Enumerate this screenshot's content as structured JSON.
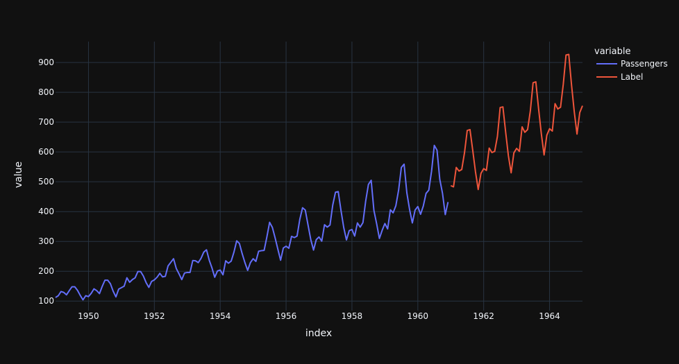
{
  "chart_data": {
    "type": "line",
    "xlabel": "index",
    "ylabel": "value",
    "xlim": [
      1949.0,
      1965.0
    ],
    "ylim": [
      68,
      970
    ],
    "x_ticks": [
      1950,
      1952,
      1954,
      1956,
      1958,
      1960,
      1962,
      1964
    ],
    "y_ticks": [
      100,
      200,
      300,
      400,
      500,
      600,
      700,
      800,
      900
    ],
    "grid": true,
    "legend": {
      "title": "variable",
      "position": "top-right"
    },
    "series": [
      {
        "name": "Passengers",
        "color": "#636efa",
        "x_start": "1949-01",
        "x_step_months": 1,
        "values": [
          112,
          118,
          132,
          129,
          121,
          135,
          148,
          148,
          136,
          119,
          104,
          118,
          115,
          126,
          141,
          135,
          125,
          149,
          170,
          170,
          158,
          133,
          114,
          140,
          145,
          150,
          178,
          163,
          172,
          178,
          199,
          199,
          184,
          162,
          146,
          166,
          171,
          180,
          193,
          181,
          183,
          218,
          230,
          242,
          209,
          191,
          172,
          194,
          196,
          196,
          236,
          235,
          229,
          243,
          264,
          272,
          237,
          211,
          180,
          201,
          204,
          188,
          235,
          227,
          234,
          264,
          302,
          293,
          259,
          229,
          203,
          229,
          242,
          233,
          267,
          269,
          270,
          315,
          364,
          347,
          312,
          274,
          237,
          278,
          284,
          277,
          317,
          313,
          318,
          374,
          413,
          405,
          355,
          306,
          271,
          306,
          315,
          301,
          356,
          348,
          355,
          422,
          465,
          467,
          404,
          347,
          305,
          336,
          340,
          318,
          362,
          348,
          363,
          435,
          491,
          505,
          404,
          359,
          310,
          337,
          360,
          342,
          406,
          396,
          420,
          472,
          548,
          559,
          463,
          407,
          362,
          405,
          417,
          391,
          419,
          461,
          472,
          535,
          622,
          606,
          508,
          461,
          390,
          432
        ]
      },
      {
        "name": "Label",
        "color": "#ef553b",
        "x_start": "1961-01",
        "x_step_months": 1,
        "values": [
          487,
          483,
          548,
          536,
          541,
          597,
          672,
          675,
          606,
          534,
          474,
          528,
          544,
          538,
          613,
          598,
          602,
          652,
          749,
          751,
          667,
          587,
          530,
          597,
          612,
          602,
          684,
          666,
          675,
          738,
          832,
          835,
          745,
          661,
          590,
          656,
          678,
          670,
          762,
          744,
          750,
          827,
          925,
          927,
          825,
          735,
          660,
          732,
          755
        ]
      }
    ]
  }
}
